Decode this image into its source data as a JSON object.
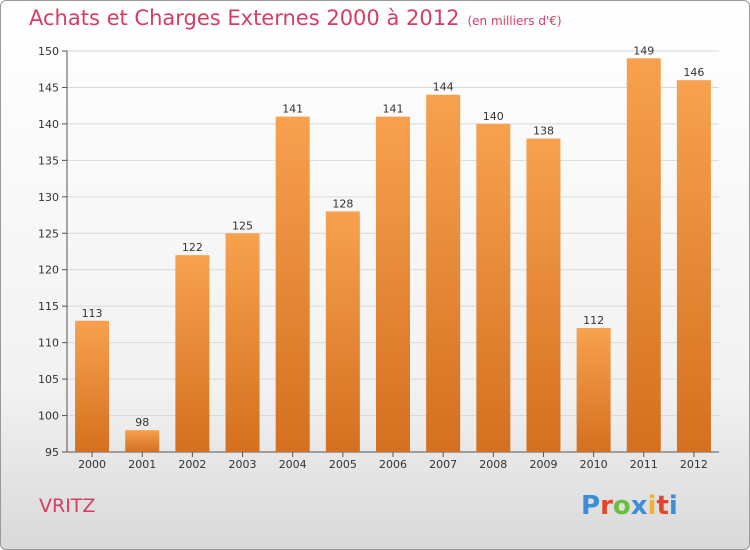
{
  "header": {
    "title": "Achats et Charges Externes 2000 à 2012",
    "unit": "(en milliers d'€)"
  },
  "footer": {
    "place": "VRITZ",
    "logo": "Proxiti"
  },
  "colors": {
    "title": "#d63c64",
    "bar_top": "#f7a14f",
    "bar_bottom": "#d4701f",
    "logo": [
      "#3a8fd8",
      "#e8422e",
      "#6cbf3c",
      "#3a8fd8",
      "#f2b233",
      "#e8422e",
      "#3a8fd8"
    ]
  },
  "chart_data": {
    "type": "bar",
    "categories": [
      "2000",
      "2001",
      "2002",
      "2003",
      "2004",
      "2005",
      "2006",
      "2007",
      "2008",
      "2009",
      "2010",
      "2011",
      "2012"
    ],
    "values": [
      113,
      98,
      122,
      125,
      141,
      128,
      141,
      144,
      140,
      138,
      112,
      149,
      146
    ],
    "value_labels": [
      "113",
      "98",
      "122",
      "125",
      "141",
      "128",
      "141",
      "144",
      "140",
      "138",
      "112",
      "149",
      "146"
    ],
    "ylim": [
      95,
      150
    ],
    "yticks": [
      "95",
      "100",
      "105",
      "110",
      "115",
      "120",
      "125",
      "130",
      "135",
      "140",
      "145",
      "150"
    ],
    "grid": true,
    "legend": "none"
  }
}
